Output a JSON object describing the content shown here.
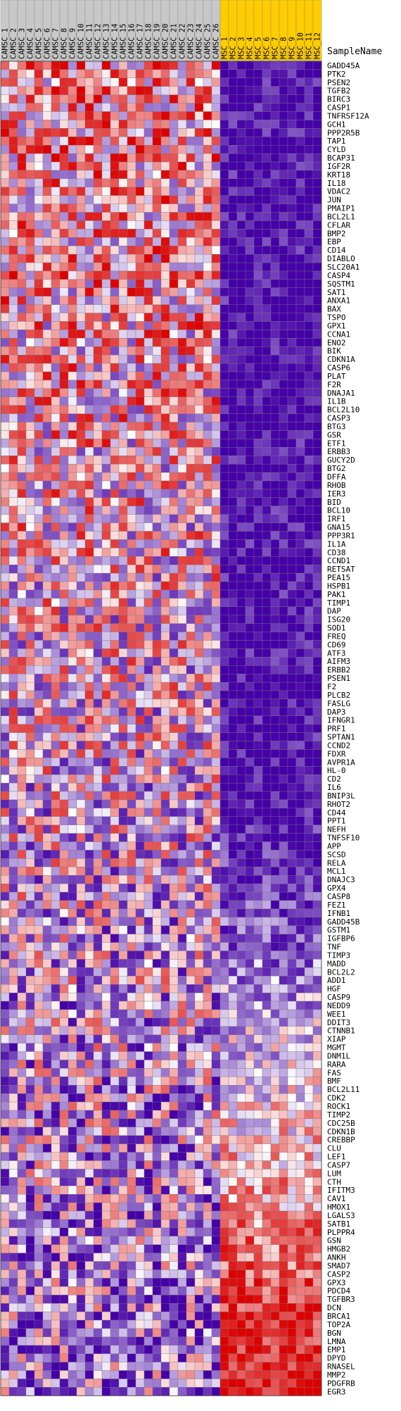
{
  "chart_data": {
    "type": "heatmap",
    "title": "",
    "xlabel": "",
    "ylabel": "",
    "row_header": "SampleName",
    "column_groups": [
      {
        "label": "CAMSC",
        "color": "#c8c8c8"
      },
      {
        "label": "MSC",
        "color": "#ffcc00"
      }
    ],
    "columns": [
      "CAMSC_1",
      "CAMSC_2",
      "CAMSC_3",
      "CAMSC_4",
      "CAMSC_5",
      "CAMSC_6",
      "CAMSC_7",
      "CAMSC_8",
      "CAMSC_9",
      "CAMSC_10",
      "CAMSC_11",
      "CAMSC_12",
      "CAMSC_13",
      "CAMSC_14",
      "CAMSC_15",
      "CAMSC_16",
      "CAMSC_17",
      "CAMSC_18",
      "CAMSC_19",
      "CAMSC_20",
      "CAMSC_21",
      "CAMSC_22",
      "CAMSC_23",
      "CAMSC_24",
      "CAMSC_25",
      "CAMSC_26",
      "MSC_1",
      "MSC_2",
      "MSC_3",
      "MSC_4",
      "MSC_5",
      "MSC_6",
      "MSC_7",
      "MSC_8",
      "MSC_9",
      "MSC_10",
      "MSC_11",
      "MSC_12"
    ],
    "rows": [
      "GADD45A",
      "PTK2",
      "PSEN2",
      "TGFB2",
      "BIRC3",
      "CASP1",
      "TNFRSF12A",
      "GCH1",
      "PPP2R5B",
      "TAP1",
      "CYLD",
      "BCAP31",
      "IGF2R",
      "KRT18",
      "IL18",
      "VDAC2",
      "JUN",
      "PMAIP1",
      "BCL2L1",
      "CFLAR",
      "BMP2",
      "EBP",
      "CD14",
      "DIABLO",
      "SLC20A1",
      "CASP4",
      "SQSTM1",
      "SAT1",
      "ANXA1",
      "BAX",
      "TSPO",
      "GPX1",
      "CCNA1",
      "ENO2",
      "BIK",
      "CDKN1A",
      "CASP6",
      "PLAT",
      "F2R",
      "DNAJA1",
      "IL1B",
      "BCL2L10",
      "CASP3",
      "BTG3",
      "GSR",
      "ETF1",
      "ERBB3",
      "GUCY2D",
      "BTG2",
      "DFFA",
      "RHOB",
      "IER3",
      "BID",
      "BCL10",
      "IRF1",
      "GNA15",
      "PPP3R1",
      "IL1A",
      "CD38",
      "CCND1",
      "RETSAT",
      "PEA15",
      "HSPB1",
      "PAK1",
      "TIMP1",
      "DAP",
      "ISG20",
      "SOD1",
      "FREQ",
      "CD69",
      "ATF3",
      "AIFM3",
      "ERBB2",
      "PSEN1",
      "F2",
      "PLCB2",
      "FASLG",
      "DAP3",
      "IFNGR1",
      "PRF1",
      "SPTAN1",
      "CCND2",
      "FDXR",
      "AVPR1A",
      "HL-0",
      "CD2",
      "IL6",
      "BNIP3L",
      "RHOT2",
      "CD44",
      "PPT1",
      "NEFH",
      "TNFSF10",
      "APP",
      "SCSD",
      "RELA",
      "MCL1",
      "DNAJC3",
      "GPX4",
      "CASP8",
      "FEZ1",
      "IFNB1",
      "GADD45B",
      "GSTM1",
      "IGFBP6",
      "TNF",
      "TIMP3",
      "MADD",
      "BCL2L2",
      "ADD1",
      "HGF",
      "CASP9",
      "NEDD9",
      "WEE1",
      "DDIT3",
      "CTNNB1",
      "XIAP",
      "MGMT",
      "DNM1L",
      "RARA",
      "FAS",
      "BMF",
      "BCL2L11",
      "CDK2",
      "ROCK1",
      "TIMP2",
      "CDC25B",
      "CDKN1B",
      "CREBBP",
      "CLU",
      "LEF1",
      "CASP7",
      "LUM",
      "CTH",
      "IFITM3",
      "CAV1",
      "HMOX1",
      "LGALS3",
      "SATB1",
      "PLPPR4",
      "GSN",
      "HMGB2",
      "ANKH",
      "SMAD7",
      "CASP2",
      "GPX3",
      "PDCD4",
      "TGFBR3",
      "DCN",
      "BRCA1",
      "TOP2A",
      "BGN",
      "LMNA",
      "EMP1",
      "DPYD",
      "RNASEL",
      "MMP2",
      "PDGFRB",
      "EGR3"
    ],
    "color_scale": {
      "low": "#4500a8",
      "mid": "#ffffff",
      "high": "#dd0000"
    },
    "values_encoding": "relative expression, -1 (blue) to +1 (red)",
    "values": "generated"
  }
}
